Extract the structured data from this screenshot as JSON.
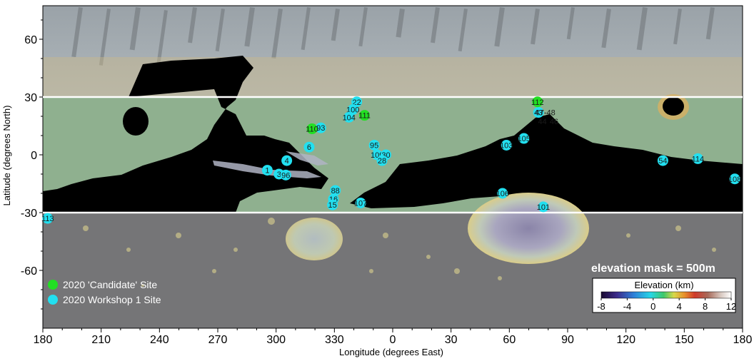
{
  "axes": {
    "xlabel": "Longitude (degrees East)",
    "ylabel": "Latitude (degrees North)",
    "x_ticks": [
      "180",
      "210",
      "240",
      "270",
      "300",
      "330",
      "0",
      "30",
      "60",
      "90",
      "120",
      "150",
      "180"
    ],
    "y_ticks": [
      "60",
      "30",
      "0",
      "-30",
      "-60"
    ]
  },
  "lat_band": {
    "north": 30,
    "south": -30
  },
  "legend": {
    "candidate_label": "2020 'Candidate' Site",
    "workshop_label": "2020 Workshop 1 Site",
    "candidate_color": "#22e022",
    "workshop_color": "#22e0f0"
  },
  "elevation_mask_label": "elevation mask = 500m",
  "colorbar": {
    "title": "Elevation (km)",
    "tick_labels": [
      "-8",
      "-4",
      "0",
      "4",
      "8",
      "12"
    ],
    "range": [
      -8,
      12
    ]
  },
  "sites": {
    "candidate": [
      {
        "label": "112",
        "lon": 74.5,
        "lat": 27.5
      },
      {
        "label": "111",
        "lon": -14.5,
        "lat": 20.5
      },
      {
        "label": "110",
        "lon": -41.5,
        "lat": 13.5
      }
    ],
    "workshop": [
      {
        "label": "22",
        "lon": -18.5,
        "lat": 27.5
      },
      {
        "label": "100",
        "lon": -20.5,
        "lat": 23.5
      },
      {
        "label": "104",
        "lon": -22.5,
        "lat": 19.5
      },
      {
        "label": "93",
        "lon": -37.0,
        "lat": 14.0
      },
      {
        "label": "95",
        "lon": -9.5,
        "lat": 5.0
      },
      {
        "label": "109",
        "lon": -8.0,
        "lat": 0.0
      },
      {
        "label": "30",
        "lon": -3.5,
        "lat": 0.0
      },
      {
        "label": "28",
        "lon": -5.5,
        "lat": -3.0
      },
      {
        "label": "6",
        "lon": -43.0,
        "lat": 4.0
      },
      {
        "label": "4",
        "lon": -54.5,
        "lat": -3.0
      },
      {
        "label": "1",
        "lon": -64.5,
        "lat": -8.0
      },
      {
        "label": "3",
        "lon": -58.5,
        "lat": -10.0
      },
      {
        "label": "96",
        "lon": -55.0,
        "lat": -10.5
      },
      {
        "label": "88",
        "lon": -29.5,
        "lat": -18.5
      },
      {
        "label": "16",
        "lon": -30.5,
        "lat": -23.0
      },
      {
        "label": "15",
        "lon": -31.0,
        "lat": -26.0
      },
      {
        "label": "107",
        "lon": -16.5,
        "lat": -25.0
      },
      {
        "label": "43",
        "lon": 75.0,
        "lat": 22.0
      },
      {
        "label": "47-48",
        "lon": 78.5,
        "lat": 22.0
      },
      {
        "label": "44",
        "lon": 77.0,
        "lat": 17.5
      },
      {
        "label": "46",
        "lon": 83.0,
        "lat": 17.5
      },
      {
        "label": "105",
        "lon": 67.5,
        "lat": 8.5
      },
      {
        "label": "103",
        "lon": 58.5,
        "lat": 5.0
      },
      {
        "label": "106",
        "lon": 56.5,
        "lat": -20.0
      },
      {
        "label": "101",
        "lon": 77.5,
        "lat": -27.0
      },
      {
        "label": "54",
        "lon": 139.0,
        "lat": -3.0
      },
      {
        "label": "114",
        "lon": 157.0,
        "lat": -2.0
      },
      {
        "label": "108",
        "lon": 176.0,
        "lat": -12.5
      },
      {
        "label": "113",
        "lon": -177.5,
        "lat": -33.0
      }
    ]
  }
}
